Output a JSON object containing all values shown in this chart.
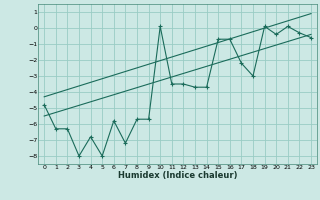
{
  "xlabel": "Humidex (Indice chaleur)",
  "bg_color": "#cce8e4",
  "grid_color": "#99ccc4",
  "line_color": "#1a6b5a",
  "xlim": [
    -0.5,
    23.5
  ],
  "ylim": [
    -8.5,
    1.5
  ],
  "xticks": [
    0,
    1,
    2,
    3,
    4,
    5,
    6,
    7,
    8,
    9,
    10,
    11,
    12,
    13,
    14,
    15,
    16,
    17,
    18,
    19,
    20,
    21,
    22,
    23
  ],
  "yticks": [
    1,
    0,
    -1,
    -2,
    -3,
    -4,
    -5,
    -6,
    -7,
    -8
  ],
  "line1_x": [
    0,
    1,
    2,
    3,
    4,
    5,
    6,
    7,
    8,
    9,
    10,
    11,
    12,
    13,
    14,
    15,
    16,
    17,
    18,
    19,
    20,
    21,
    22,
    23
  ],
  "line1_y": [
    -4.8,
    -6.3,
    -6.3,
    -8.0,
    -6.8,
    -8.0,
    -5.8,
    -7.2,
    -5.7,
    -5.7,
    0.1,
    -3.5,
    -3.5,
    -3.7,
    -3.7,
    -0.7,
    -0.7,
    -2.2,
    -3.0,
    0.1,
    -0.4,
    0.1,
    -0.3,
    -0.6
  ],
  "line2_x": [
    0,
    23
  ],
  "line2_y": [
    -5.5,
    -0.4
  ],
  "line3_x": [
    0,
    23
  ],
  "line3_y": [
    -4.3,
    0.9
  ]
}
